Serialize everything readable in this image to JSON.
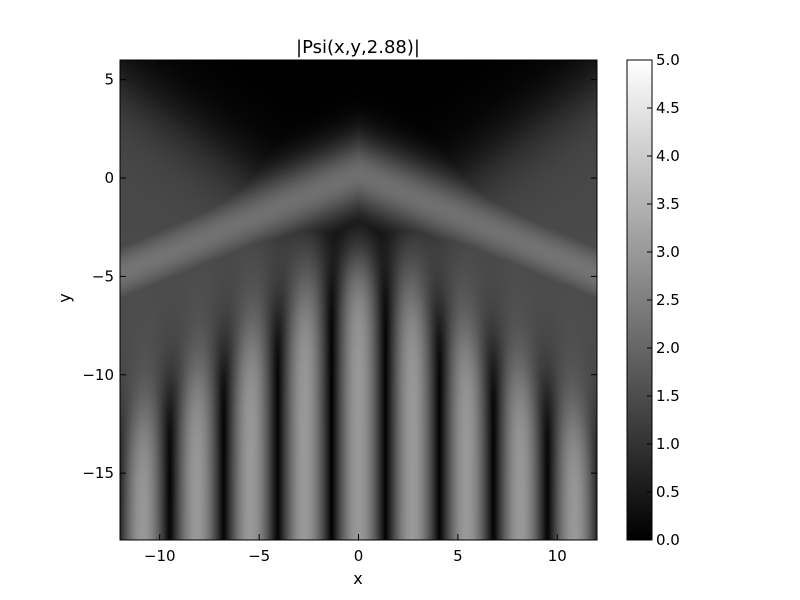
{
  "chart_data": {
    "type": "heatmap",
    "title": "|Psi(x,y,2.88)|",
    "xlabel": "x",
    "ylabel": "y",
    "xlim": [
      -12,
      12
    ],
    "ylim": [
      -18.4,
      6
    ],
    "x_ticks": [
      -10,
      -5,
      0,
      5,
      10
    ],
    "x_tick_labels": [
      "−10",
      "−5",
      "0",
      "5",
      "10"
    ],
    "y_ticks": [
      5,
      0,
      -5,
      -10,
      -15
    ],
    "y_tick_labels": [
      "5",
      "0",
      "−5",
      "−10",
      "−15"
    ],
    "colormap": "gray",
    "colorbar": {
      "range": [
        0.0,
        5.0
      ],
      "ticks": [
        0.0,
        0.5,
        1.0,
        1.5,
        2.0,
        2.5,
        3.0,
        3.5,
        4.0,
        4.5,
        5.0
      ],
      "tick_labels": [
        "0.0",
        "0.5",
        "1.0",
        "1.5",
        "2.0",
        "2.5",
        "3.0",
        "3.5",
        "4.0",
        "4.5",
        "5.0"
      ]
    },
    "grid": false
  }
}
